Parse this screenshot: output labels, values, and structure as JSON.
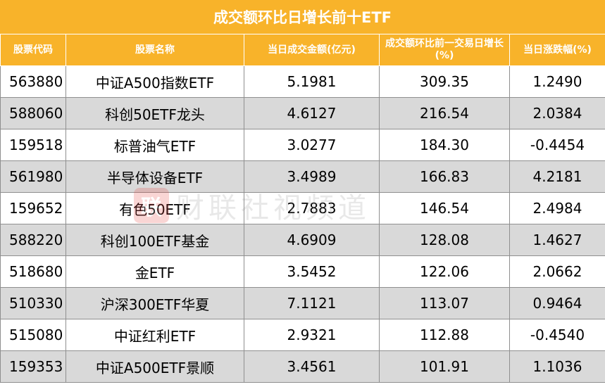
{
  "title": "成交额环比日增长前十ETF",
  "headers": [
    "股票代码",
    "股票名称",
    "当日成交金额(亿元)",
    "成交额环比前一交易日增长(%)",
    "当日涨跌幅(%)"
  ],
  "rows": [
    {
      "code": "563880",
      "name": "中证A500指数ETF",
      "amount": "5.1981",
      "growth": "309.35",
      "change": "1.2490"
    },
    {
      "code": "588060",
      "name": "科创50ETF龙头",
      "amount": "4.6127",
      "growth": "216.54",
      "change": "2.0384"
    },
    {
      "code": "159518",
      "name": "标普油气ETF",
      "amount": "3.0277",
      "growth": "184.30",
      "change": "-0.4454"
    },
    {
      "code": "561980",
      "name": "半导体设备ETF",
      "amount": "3.4989",
      "growth": "166.83",
      "change": "4.2181"
    },
    {
      "code": "159652",
      "name": "有色50ETF",
      "amount": "2.7883",
      "growth": "146.54",
      "change": "2.4984"
    },
    {
      "code": "588220",
      "name": "科创100ETF基金",
      "amount": "4.6909",
      "growth": "128.08",
      "change": "1.4627"
    },
    {
      "code": "518680",
      "name": "金ETF",
      "amount": "3.5452",
      "growth": "122.06",
      "change": "2.0662"
    },
    {
      "code": "510330",
      "name": "沪深300ETF华夏",
      "amount": "7.1121",
      "growth": "113.07",
      "change": "0.9464"
    },
    {
      "code": "515080",
      "name": "中证红利ETF",
      "amount": "2.9321",
      "growth": "112.88",
      "change": "-0.4540"
    },
    {
      "code": "159353",
      "name": "中证A500ETF景顺",
      "amount": "3.4561",
      "growth": "101.91",
      "change": "1.1036"
    }
  ],
  "watermark": {
    "logo_text": "联",
    "text": "财联社视频道",
    "logo_color": "#e64340"
  }
}
